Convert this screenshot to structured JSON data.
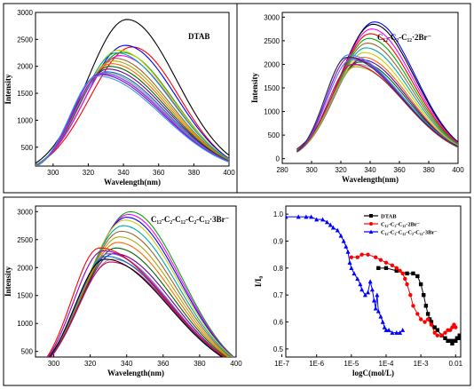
{
  "chart_data": [
    {
      "type": "line",
      "title": "DTAB",
      "xlabel": "Wavelength(nm)",
      "ylabel": "Intensity",
      "xlim": [
        290,
        400
      ],
      "ylim": [
        150,
        3000
      ],
      "x_ticks": [
        "300",
        "320",
        "340",
        "360",
        "380",
        "400"
      ],
      "y_ticks": [
        "500",
        "1000",
        "1500",
        "2000",
        "2500",
        "3000"
      ],
      "curve_start": 290,
      "curve_end": 400,
      "peaks": [
        {
          "center": 342,
          "height": 2870,
          "color": "#000000"
        },
        {
          "center": 345,
          "height": 2360,
          "color": "#ff0000"
        },
        {
          "center": 341,
          "height": 2390,
          "color": "#0000ff"
        },
        {
          "center": 339,
          "height": 2260,
          "color": "#00aa00"
        },
        {
          "center": 338,
          "height": 2200,
          "color": "#ff00ff"
        },
        {
          "center": 337,
          "height": 2300,
          "color": "#cccc00"
        },
        {
          "center": 336,
          "height": 2250,
          "color": "#00aaaa"
        },
        {
          "center": 335,
          "height": 2150,
          "color": "#996633"
        },
        {
          "center": 334,
          "height": 2100,
          "color": "#aaaa00"
        },
        {
          "center": 333,
          "height": 2050,
          "color": "#ff6600"
        },
        {
          "center": 332,
          "height": 2000,
          "color": "#006600"
        },
        {
          "center": 331,
          "height": 1950,
          "color": "#660099"
        },
        {
          "center": 330,
          "height": 1900,
          "color": "#0066cc"
        },
        {
          "center": 329,
          "height": 1880,
          "color": "#999999"
        },
        {
          "center": 328,
          "height": 1860,
          "color": "#cc0066"
        },
        {
          "center": 327,
          "height": 1870,
          "color": "#6666ff"
        },
        {
          "center": 326,
          "height": 1850,
          "color": "#9900cc"
        },
        {
          "center": 325,
          "height": 1820,
          "color": "#3399ff"
        }
      ]
    },
    {
      "type": "line",
      "title": "C₁₂-C₂-C₁₂·2Br⁻",
      "xlabel": "Wavelength(nm)",
      "ylabel": "Intensity",
      "xlim": [
        280,
        400
      ],
      "ylim": [
        -100,
        3100
      ],
      "x_ticks": [
        "280",
        "300",
        "320",
        "340",
        "360",
        "380",
        "400"
      ],
      "y_ticks": [
        "0",
        "500",
        "1000",
        "1500",
        "2000",
        "2500",
        "3000"
      ],
      "curve_start": 290,
      "curve_end": 400,
      "peaks": [
        {
          "center": 343,
          "height": 2900,
          "color": "#0000ff"
        },
        {
          "center": 342,
          "height": 2850,
          "color": "#000000"
        },
        {
          "center": 341,
          "height": 2750,
          "color": "#ff00ff"
        },
        {
          "center": 340,
          "height": 2650,
          "color": "#ff0000"
        },
        {
          "center": 339,
          "height": 2550,
          "color": "#00aa00"
        },
        {
          "center": 338,
          "height": 2450,
          "color": "#996633"
        },
        {
          "center": 337,
          "height": 2350,
          "color": "#00aaaa"
        },
        {
          "center": 336,
          "height": 2250,
          "color": "#cccc00"
        },
        {
          "center": 335,
          "height": 2150,
          "color": "#ff6600"
        },
        {
          "center": 334,
          "height": 2100,
          "color": "#660099"
        },
        {
          "center": 333,
          "height": 2050,
          "color": "#006600"
        },
        {
          "center": 332,
          "height": 2000,
          "color": "#999999"
        },
        {
          "center": 330,
          "height": 1950,
          "color": "#aaaa00"
        },
        {
          "center": 328,
          "height": 2000,
          "color": "#cc0066"
        },
        {
          "center": 327,
          "height": 2100,
          "color": "#6666ff"
        },
        {
          "center": 326,
          "height": 2150,
          "color": "#9900cc"
        },
        {
          "center": 325,
          "height": 2200,
          "color": "#3399ff"
        },
        {
          "center": 324,
          "height": 2150,
          "color": "#333333"
        }
      ]
    },
    {
      "type": "line",
      "title": "C₁₂-C₂-C₁₂-C₂-C₁₂·3Br⁻",
      "xlabel": "Wavelength(nm)",
      "ylabel": "Intensity",
      "xlim": [
        290,
        400
      ],
      "ylim": [
        400,
        3100
      ],
      "x_ticks": [
        "300",
        "320",
        "340",
        "360",
        "380",
        "400"
      ],
      "y_ticks": [
        "500",
        "1000",
        "1500",
        "2000",
        "2500",
        "3000"
      ],
      "curve_start": 290,
      "curve_end": 400,
      "peaks": [
        {
          "center": 342,
          "height": 3000,
          "color": "#00aa00"
        },
        {
          "center": 341,
          "height": 2950,
          "color": "#ff00ff"
        },
        {
          "center": 340,
          "height": 2900,
          "color": "#0000ff"
        },
        {
          "center": 339,
          "height": 2850,
          "color": "#cccc00"
        },
        {
          "center": 338,
          "height": 2750,
          "color": "#00aaaa"
        },
        {
          "center": 337,
          "height": 2650,
          "color": "#996633"
        },
        {
          "center": 336,
          "height": 2550,
          "color": "#aaaa00"
        },
        {
          "center": 335,
          "height": 2450,
          "color": "#ff6600"
        },
        {
          "center": 334,
          "height": 2350,
          "color": "#006600"
        },
        {
          "center": 333,
          "height": 2250,
          "color": "#660099"
        },
        {
          "center": 332,
          "height": 2150,
          "color": "#999999"
        },
        {
          "center": 331,
          "height": 2100,
          "color": "#cc0066"
        },
        {
          "center": 330,
          "height": 2250,
          "color": "#6666ff"
        },
        {
          "center": 329,
          "height": 2200,
          "color": "#0066cc"
        },
        {
          "center": 328,
          "height": 2150,
          "color": "#000000"
        },
        {
          "center": 327,
          "height": 2300,
          "color": "#9900cc"
        },
        {
          "center": 325,
          "height": 2350,
          "color": "#ff0000"
        }
      ]
    },
    {
      "type": "line",
      "title": "",
      "xlabel": "logC(mol/L)",
      "ylabel": "I/I₀",
      "xscale": "log",
      "xlim": [
        1.3e-07,
        0.014
      ],
      "ylim": [
        0.47,
        1.03
      ],
      "x_ticks": [
        {
          "label": "1E-7",
          "value": 1e-07
        },
        {
          "label": "1E-6",
          "value": 1e-06
        },
        {
          "label": "1E-5",
          "value": 1e-05
        },
        {
          "label": "1E-4",
          "value": 0.0001
        },
        {
          "label": "1E-3",
          "value": 0.001
        },
        {
          "label": "0.01",
          "value": 0.01
        }
      ],
      "y_ticks": [
        "0.5",
        "0.6",
        "0.7",
        "0.8",
        "0.9",
        "1.0"
      ],
      "legend_position": "top-right",
      "series": [
        {
          "name": "DTAB",
          "color": "#000000",
          "marker": "square",
          "x": [
            6e-05,
            0.0001,
            0.0002,
            0.0004,
            0.0006,
            0.0008,
            0.001,
            0.0012,
            0.0014,
            0.0016,
            0.0018,
            0.002,
            0.0025,
            0.003,
            0.004,
            0.005,
            0.006,
            0.007,
            0.008,
            0.009,
            0.01,
            0.011,
            0.012,
            0.013
          ],
          "y": [
            0.8,
            0.8,
            0.79,
            0.78,
            0.78,
            0.77,
            0.74,
            0.7,
            0.66,
            0.63,
            0.61,
            0.6,
            0.58,
            0.57,
            0.55,
            0.54,
            0.53,
            0.53,
            0.52,
            0.53,
            0.53,
            0.54,
            0.54,
            0.55
          ]
        },
        {
          "name": "C₁₂-C₂-C₁₂·2Br⁻",
          "color": "#ff0000",
          "marker": "circle",
          "x": [
            1e-05,
            1.5e-05,
            2e-05,
            3e-05,
            5e-05,
            7e-05,
            0.0001,
            0.00015,
            0.0002,
            0.00025,
            0.0003,
            0.00035,
            0.0004,
            0.0005,
            0.0006,
            0.0008,
            0.001,
            0.0013,
            0.0016,
            0.002,
            0.0025,
            0.003,
            0.004,
            0.005,
            0.006,
            0.007,
            0.008,
            0.009,
            0.01
          ],
          "y": [
            0.84,
            0.84,
            0.85,
            0.85,
            0.84,
            0.83,
            0.82,
            0.81,
            0.8,
            0.79,
            0.78,
            0.76,
            0.74,
            0.7,
            0.66,
            0.63,
            0.61,
            0.6,
            0.61,
            0.59,
            0.56,
            0.55,
            0.55,
            0.56,
            0.57,
            0.57,
            0.58,
            0.59,
            0.58
          ]
        },
        {
          "name": "C₁₂-C₂-C₁₂-C₂-C₁₂·3Br⁻",
          "color": "#0000ff",
          "marker": "triangle",
          "x": [
            1.3e-07,
            3e-07,
            5e-07,
            7e-07,
            1e-06,
            1.5e-06,
            2e-06,
            2.5e-06,
            3e-06,
            4e-06,
            5e-06,
            6e-06,
            7e-06,
            8e-06,
            9e-06,
            1e-05,
            1.2e-05,
            1.5e-05,
            1.8e-05,
            2e-05,
            2.5e-05,
            3e-05,
            3.5e-05,
            4e-05,
            4.5e-05,
            5e-05,
            5.5e-05,
            6e-05,
            7e-05,
            8e-05,
            9e-05,
            0.0001,
            0.00012,
            0.00015,
            0.0002,
            0.00025,
            0.0003
          ],
          "y": [
            0.99,
            0.99,
            0.99,
            0.99,
            0.98,
            0.98,
            0.97,
            0.96,
            0.95,
            0.94,
            0.92,
            0.9,
            0.88,
            0.86,
            0.82,
            0.8,
            0.78,
            0.76,
            0.74,
            0.72,
            0.7,
            0.71,
            0.75,
            0.72,
            0.68,
            0.65,
            0.7,
            0.64,
            0.62,
            0.6,
            0.58,
            0.57,
            0.57,
            0.56,
            0.56,
            0.56,
            0.57
          ]
        }
      ]
    }
  ]
}
